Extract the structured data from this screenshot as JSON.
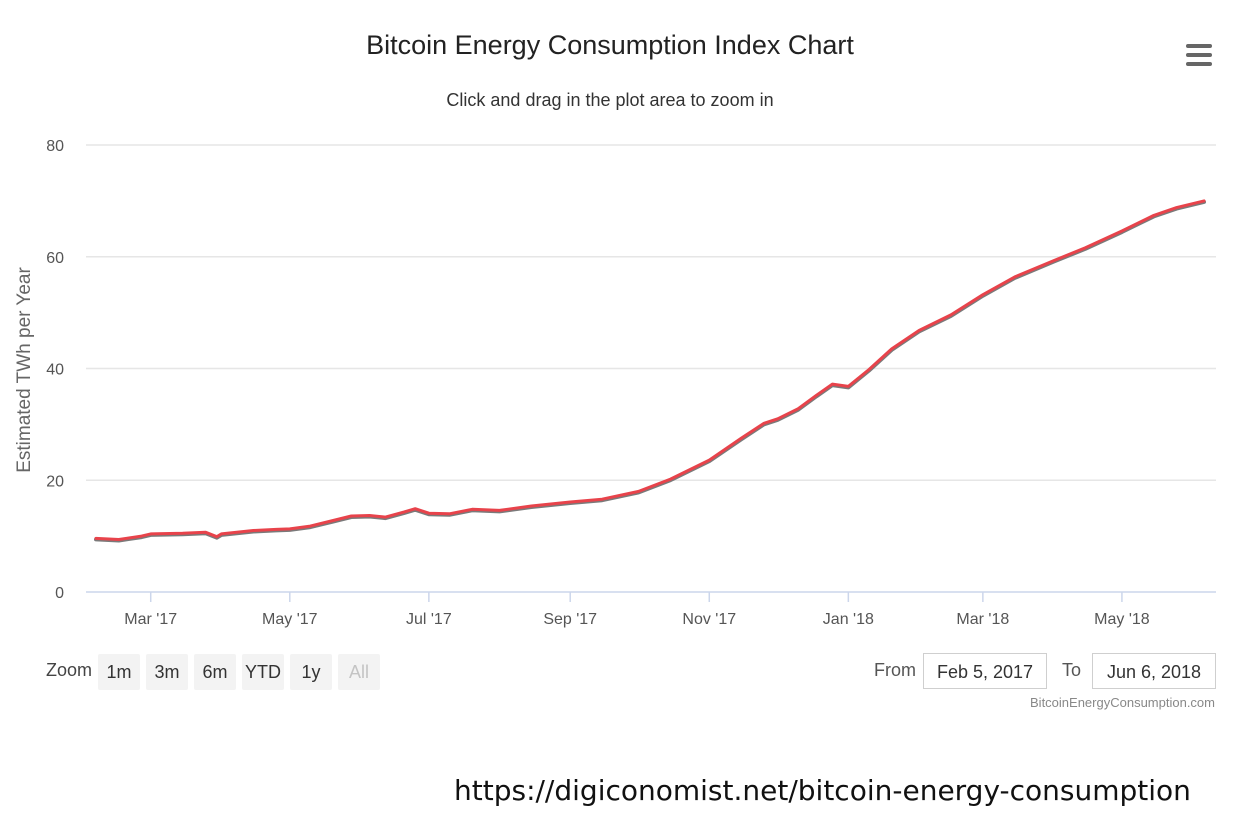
{
  "chart": {
    "title": "Bitcoin Energy Consumption Index Chart",
    "subtitle": "Click and drag in the plot area to zoom in",
    "menu_icon": "hamburger-menu-icon",
    "credit": "BitcoinEnergyConsumption.com"
  },
  "zoom": {
    "label": "Zoom",
    "buttons": [
      "1m",
      "3m",
      "6m",
      "YTD",
      "1y",
      "All"
    ],
    "active": "All"
  },
  "range": {
    "from_label": "From",
    "from_value": "Feb 5, 2017",
    "to_label": "To",
    "to_value": "Jun 6, 2018"
  },
  "source_url": "https://digiconomist.net/bitcoin-energy-consumption",
  "colors": {
    "line": "#e8434b",
    "grid": "#e6e6e6",
    "axis": "#ccd6eb"
  },
  "chart_data": {
    "type": "line",
    "title": "Bitcoin Energy Consumption Index Chart",
    "subtitle": "Click and drag in the plot area to zoom in",
    "xlabel": "",
    "ylabel": "Estimated TWh per Year",
    "ylim": [
      0,
      80
    ],
    "yticks": [
      0,
      20,
      40,
      60,
      80
    ],
    "xlim": [
      "2017-02-05",
      "2018-06-06"
    ],
    "xticks": [
      {
        "date": "2017-03-01",
        "label": "Mar '17"
      },
      {
        "date": "2017-05-01",
        "label": "May '17"
      },
      {
        "date": "2017-07-01",
        "label": "Jul '17"
      },
      {
        "date": "2017-09-01",
        "label": "Sep '17"
      },
      {
        "date": "2017-11-01",
        "label": "Nov '17"
      },
      {
        "date": "2018-01-01",
        "label": "Jan '18"
      },
      {
        "date": "2018-03-01",
        "label": "Mar '18"
      },
      {
        "date": "2018-05-01",
        "label": "May '18"
      }
    ],
    "grid": true,
    "legend": "none",
    "series": [
      {
        "points": [
          [
            "2017-02-05",
            9.6
          ],
          [
            "2017-02-15",
            9.4
          ],
          [
            "2017-02-25",
            10.0
          ],
          [
            "2017-03-01",
            10.4
          ],
          [
            "2017-03-15",
            10.5
          ],
          [
            "2017-03-25",
            10.7
          ],
          [
            "2017-03-30",
            9.9
          ],
          [
            "2017-04-01",
            10.4
          ],
          [
            "2017-04-15",
            11.0
          ],
          [
            "2017-04-25",
            11.2
          ],
          [
            "2017-05-01",
            11.3
          ],
          [
            "2017-05-10",
            11.8
          ],
          [
            "2017-05-20",
            12.8
          ],
          [
            "2017-05-28",
            13.6
          ],
          [
            "2017-06-05",
            13.7
          ],
          [
            "2017-06-12",
            13.4
          ],
          [
            "2017-06-20",
            14.3
          ],
          [
            "2017-06-25",
            14.9
          ],
          [
            "2017-07-01",
            14.1
          ],
          [
            "2017-07-10",
            14.0
          ],
          [
            "2017-07-20",
            14.8
          ],
          [
            "2017-08-01",
            14.6
          ],
          [
            "2017-08-15",
            15.4
          ],
          [
            "2017-09-01",
            16.1
          ],
          [
            "2017-09-15",
            16.6
          ],
          [
            "2017-10-01",
            18.0
          ],
          [
            "2017-10-15",
            20.2
          ],
          [
            "2017-11-01",
            23.6
          ],
          [
            "2017-11-15",
            27.5
          ],
          [
            "2017-11-25",
            30.2
          ],
          [
            "2017-12-01",
            31.0
          ],
          [
            "2017-12-10",
            32.8
          ],
          [
            "2017-12-18",
            35.2
          ],
          [
            "2017-12-25",
            37.2
          ],
          [
            "2018-01-01",
            36.8
          ],
          [
            "2018-01-10",
            39.8
          ],
          [
            "2018-01-20",
            43.5
          ],
          [
            "2018-02-01",
            46.8
          ],
          [
            "2018-02-15",
            49.6
          ],
          [
            "2018-03-01",
            53.2
          ],
          [
            "2018-03-15",
            56.4
          ],
          [
            "2018-04-01",
            59.3
          ],
          [
            "2018-04-15",
            61.6
          ],
          [
            "2018-05-01",
            64.6
          ],
          [
            "2018-05-15",
            67.4
          ],
          [
            "2018-05-25",
            68.8
          ],
          [
            "2018-06-06",
            70.0
          ]
        ]
      }
    ]
  }
}
